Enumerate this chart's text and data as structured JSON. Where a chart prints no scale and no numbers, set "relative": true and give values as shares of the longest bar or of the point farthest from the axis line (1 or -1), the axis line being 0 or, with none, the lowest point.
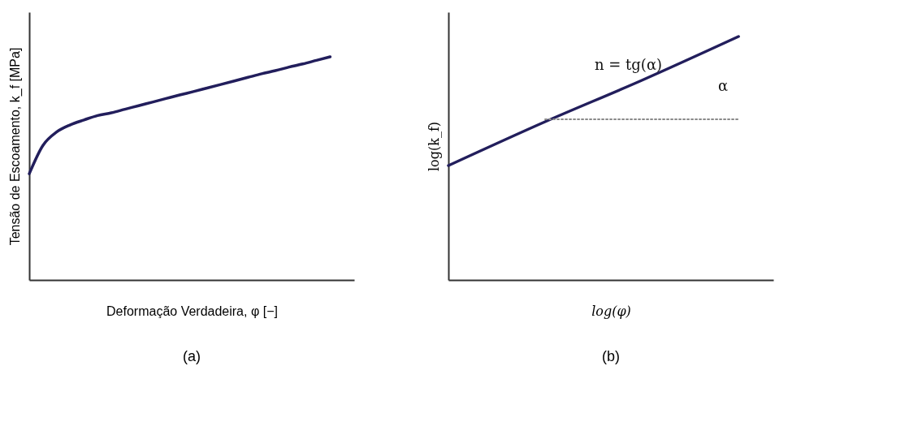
{
  "chart_data": [
    {
      "type": "line",
      "title": "(a)",
      "xlabel": "Deformação Verdadeira, φ [−]",
      "ylabel": "Tensão de Escoamento, k_f [MPa]",
      "relative": true,
      "categories": [
        null,
        null,
        null,
        null,
        null,
        null,
        null,
        null,
        null,
        null,
        null,
        null,
        null,
        null,
        null,
        null,
        null,
        null,
        null,
        null,
        null,
        null,
        null
      ],
      "series": [
        {
          "color": "#221e5c",
          "values": [
            0.476,
            0.603,
            0.663,
            0.695,
            0.717,
            0.737,
            0.749,
            0.765,
            0.781,
            0.797,
            0.813,
            0.829,
            0.844,
            0.86,
            0.876,
            0.892,
            0.908,
            0.924,
            0.938,
            0.954,
            0.968,
            0.984,
            1
          ]
        }
      ]
    },
    {
      "type": "line",
      "title": "(b)",
      "xlabel": "log(φ)",
      "ylabel": "log(k_f)",
      "relative": true,
      "annotations": [
        "n = tg(α)",
        "α"
      ],
      "categories": [
        null,
        null,
        null,
        null
      ],
      "series": [
        {
          "color": "#221e5c",
          "values": [
            0.47,
            0.65,
            0.82,
            1
          ]
        },
        {
          "color": "#8a8a8a",
          "line_style": "dotted",
          "values": [
            null,
            0.66,
            0.66,
            0.66
          ]
        }
      ]
    }
  ]
}
